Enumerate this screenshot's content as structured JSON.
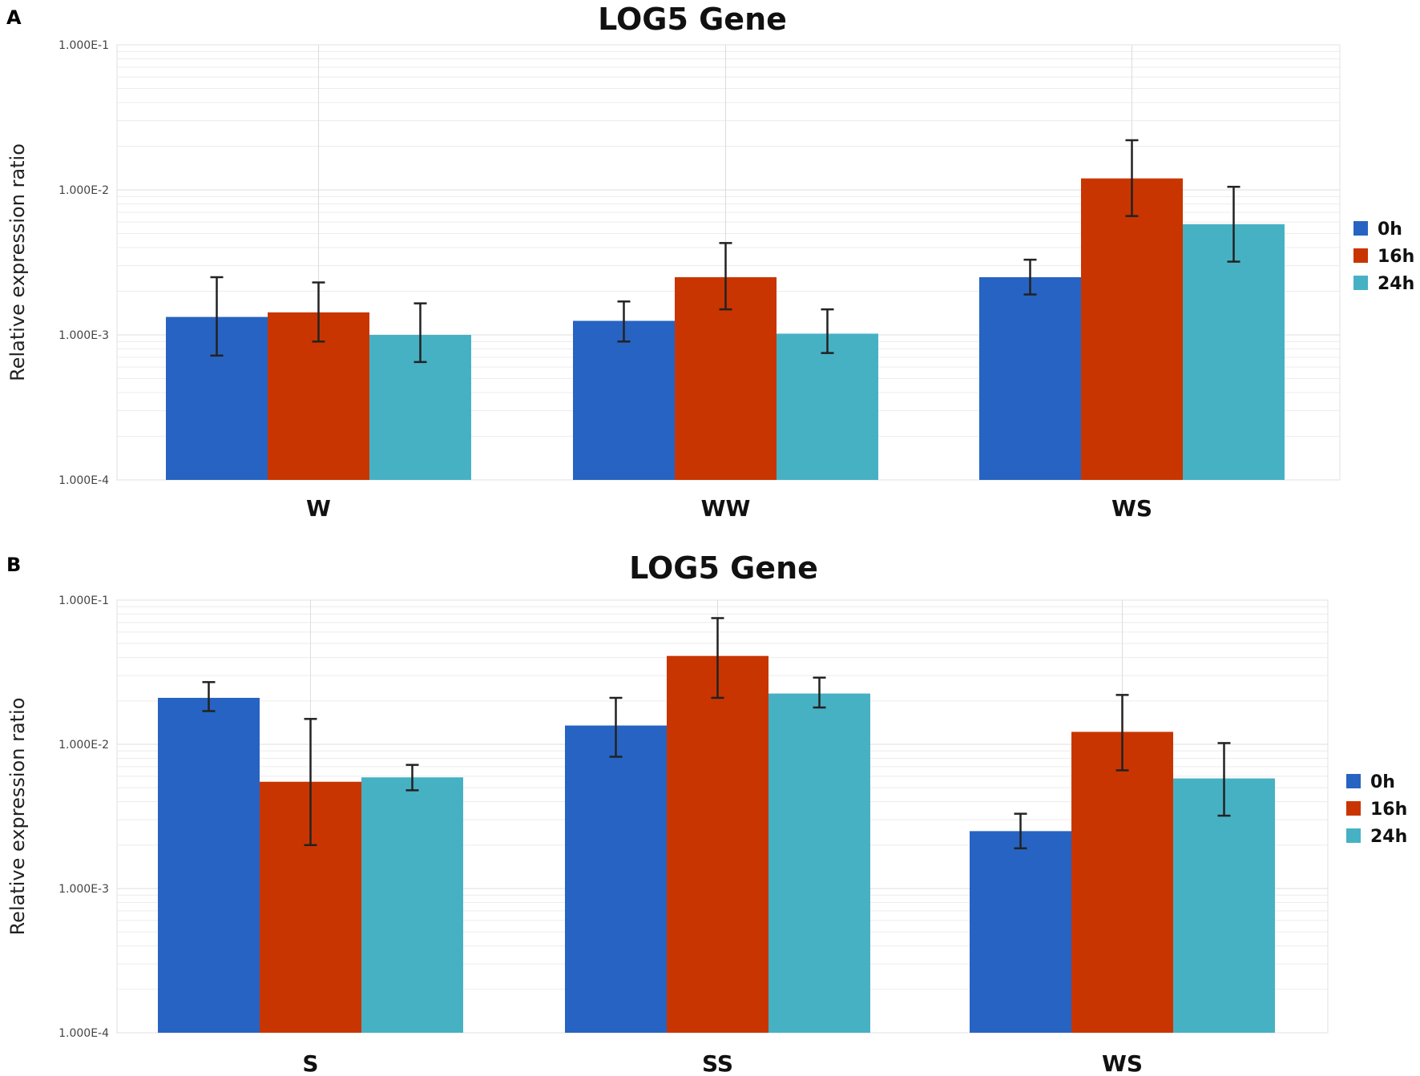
{
  "colors": {
    "0h": "#2763c2",
    "16h": "#c93500",
    "24h": "#47b1c4"
  },
  "chart_data": [
    {
      "panel": "A",
      "type": "bar",
      "title": "LOG5 Gene",
      "ylabel": "Relative expression ratio",
      "xlabel": "",
      "yscale": "log",
      "ylim": [
        0.0001,
        0.1
      ],
      "yticks": [
        0.0001,
        0.001,
        0.01,
        0.1
      ],
      "ytick_labels": [
        "1.000E-4",
        "1.000E-3",
        "1.000E-2",
        "1.000E-1"
      ],
      "categories": [
        "W",
        "WW",
        "WS"
      ],
      "legend_position": "right",
      "series": [
        {
          "name": "0h",
          "values": [
            0.00133,
            0.00125,
            0.0025
          ],
          "err_low": [
            0.00072,
            0.0009,
            0.0019
          ],
          "err_high": [
            0.0025,
            0.0017,
            0.0033
          ]
        },
        {
          "name": "16h",
          "values": [
            0.00143,
            0.0025,
            0.012
          ],
          "err_low": [
            0.0009,
            0.0015,
            0.0066
          ],
          "err_high": [
            0.0023,
            0.0043,
            0.022
          ]
        },
        {
          "name": "24h",
          "values": [
            0.001,
            0.00102,
            0.0058
          ],
          "err_low": [
            0.00065,
            0.00075,
            0.0032
          ],
          "err_high": [
            0.00165,
            0.0015,
            0.0105
          ]
        }
      ]
    },
    {
      "panel": "B",
      "type": "bar",
      "title": "LOG5 Gene",
      "ylabel": "Relative expression ratio",
      "xlabel": "",
      "yscale": "log",
      "ylim": [
        0.0001,
        0.1
      ],
      "yticks": [
        0.0001,
        0.001,
        0.01,
        0.1
      ],
      "ytick_labels": [
        "1.000E-4",
        "1.000E-3",
        "1.000E-2",
        "1.000E-1"
      ],
      "categories": [
        "S",
        "SS",
        "WS"
      ],
      "legend_position": "right",
      "series": [
        {
          "name": "0h",
          "values": [
            0.021,
            0.0135,
            0.0025
          ],
          "err_low": [
            0.017,
            0.0082,
            0.0019
          ],
          "err_high": [
            0.027,
            0.021,
            0.0033
          ]
        },
        {
          "name": "16h",
          "values": [
            0.0055,
            0.041,
            0.0122
          ],
          "err_low": [
            0.002,
            0.021,
            0.0066
          ],
          "err_high": [
            0.015,
            0.075,
            0.022
          ]
        },
        {
          "name": "24h",
          "values": [
            0.0059,
            0.0225,
            0.0058
          ],
          "err_low": [
            0.0048,
            0.018,
            0.0032
          ],
          "err_high": [
            0.0072,
            0.029,
            0.0102
          ]
        }
      ]
    }
  ]
}
